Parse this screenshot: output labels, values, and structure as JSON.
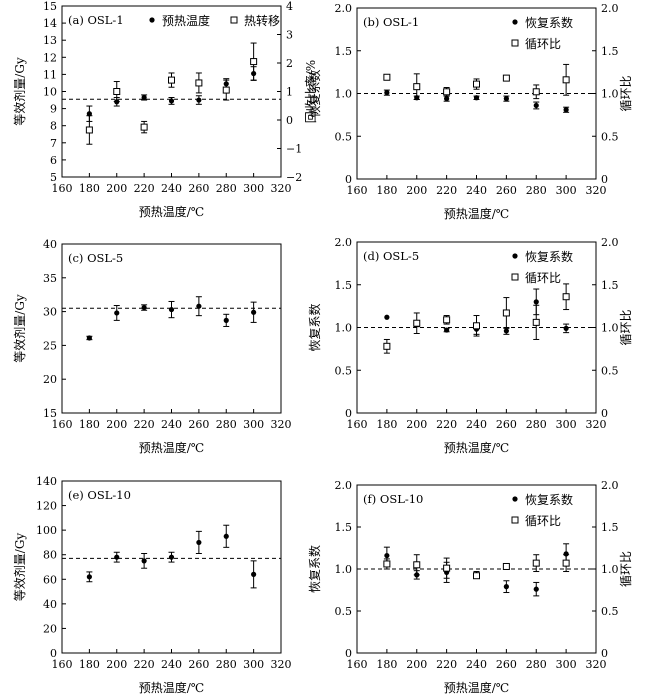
{
  "chart_data": [
    {
      "type": "scatter",
      "title": "(a) OSL-1",
      "xlabel": "预热温度/℃",
      "ylabel": "等效剂量/Gy",
      "y2label": "回收比率/%",
      "xlim": [
        160,
        320
      ],
      "ylim": [
        5,
        15
      ],
      "y2lim": [
        -2,
        4
      ],
      "xticks": [
        "160",
        "180",
        "200",
        "220",
        "240",
        "260",
        "280",
        "300",
        "320"
      ],
      "yticks": [
        "5",
        "6",
        "7",
        "8",
        "9",
        "10",
        "11",
        "12",
        "13",
        "14",
        "15"
      ],
      "y2ticks": [
        "−2",
        "−1",
        "0",
        "1",
        "2",
        "3",
        "4"
      ],
      "reference_line": {
        "axis": "y",
        "value": 9.55
      },
      "legend_position": "top",
      "series": [
        {
          "name": "预热温度",
          "marker": "filled-circle",
          "axis": "left",
          "x": [
            180,
            200,
            220,
            240,
            260,
            280,
            300
          ],
          "y": [
            8.7,
            9.4,
            9.65,
            9.45,
            9.5,
            10.45,
            11.05
          ],
          "err": [
            0.45,
            0.25,
            0.15,
            0.2,
            0.25,
            0.3,
            0.4
          ]
        },
        {
          "name": "热转移",
          "marker": "open-square",
          "axis": "right",
          "x": [
            180,
            200,
            220,
            240,
            260,
            280,
            300
          ],
          "y": [
            -0.35,
            1.0,
            -0.25,
            1.4,
            1.3,
            1.05,
            2.05
          ],
          "err": [
            0.5,
            0.35,
            0.2,
            0.25,
            0.35,
            0.35,
            0.65
          ]
        }
      ]
    },
    {
      "type": "scatter",
      "title": "(b) OSL-1",
      "xlabel": "预热温度/℃",
      "ylabel": "恢复系数",
      "y2label": "循环比",
      "xlim": [
        160,
        320
      ],
      "ylim": [
        0,
        2
      ],
      "y2lim": [
        0,
        2
      ],
      "xticks": [
        "160",
        "180",
        "200",
        "220",
        "240",
        "260",
        "280",
        "300",
        "320"
      ],
      "yticks": [
        "0",
        "0.5",
        "1.0",
        "1.5",
        "2.0"
      ],
      "y2ticks": [
        "0",
        "0.5",
        "1.0",
        "1.5",
        "2.0"
      ],
      "reference_line": {
        "axis": "y",
        "value": 1.0
      },
      "legend_position": "top-right",
      "series": [
        {
          "name": "恢复系数",
          "marker": "filled-circle",
          "axis": "left",
          "x": [
            180,
            200,
            220,
            240,
            260,
            280,
            300
          ],
          "y": [
            1.01,
            0.95,
            0.94,
            0.95,
            0.94,
            0.86,
            0.81
          ],
          "err": [
            0.03,
            0.02,
            0.03,
            0.02,
            0.03,
            0.04,
            0.03
          ]
        },
        {
          "name": "循环比",
          "marker": "open-square",
          "axis": "right",
          "x": [
            180,
            200,
            220,
            240,
            260,
            280,
            300
          ],
          "y": [
            1.19,
            1.08,
            1.02,
            1.11,
            1.18,
            1.02,
            1.16
          ],
          "err": [
            0.03,
            0.15,
            0.05,
            0.06,
            0.03,
            0.08,
            0.18
          ]
        }
      ]
    },
    {
      "type": "scatter",
      "title": "(c) OSL-5",
      "xlabel": "预热温度/℃",
      "ylabel": "等效剂量/Gy",
      "xlim": [
        160,
        320
      ],
      "ylim": [
        15,
        40
      ],
      "xticks": [
        "160",
        "180",
        "200",
        "220",
        "240",
        "260",
        "280",
        "300",
        "320"
      ],
      "yticks": [
        "15",
        "20",
        "25",
        "30",
        "35",
        "40"
      ],
      "reference_line": {
        "axis": "y",
        "value": 30.5
      },
      "series": [
        {
          "name": "",
          "marker": "filled-circle",
          "axis": "left",
          "x": [
            180,
            200,
            220,
            240,
            260,
            280,
            300
          ],
          "y": [
            26.1,
            29.8,
            30.6,
            30.3,
            30.8,
            28.7,
            29.9
          ],
          "err": [
            0.25,
            1.1,
            0.4,
            1.2,
            1.4,
            0.9,
            1.5
          ]
        }
      ]
    },
    {
      "type": "scatter",
      "title": "(d) OSL-5",
      "xlabel": "预热温度/℃",
      "ylabel": "恢复系数",
      "y2label": "循环比",
      "xlim": [
        160,
        320
      ],
      "ylim": [
        0,
        2
      ],
      "y2lim": [
        0,
        2
      ],
      "xticks": [
        "160",
        "180",
        "200",
        "220",
        "240",
        "260",
        "280",
        "300",
        "320"
      ],
      "yticks": [
        "0",
        "0.5",
        "1.0",
        "1.5",
        "2.0"
      ],
      "y2ticks": [
        "0",
        "0.5",
        "1.0",
        "1.5",
        "2.0"
      ],
      "reference_line": {
        "axis": "y",
        "value": 1.0
      },
      "legend_position": "top-right",
      "series": [
        {
          "name": "恢复系数",
          "marker": "filled-circle",
          "axis": "left",
          "x": [
            180,
            200,
            220,
            240,
            260,
            280,
            300
          ],
          "y": [
            1.12,
            1.04,
            0.97,
            0.98,
            0.96,
            1.3,
            0.99
          ],
          "err": [
            0.0,
            0.03,
            0.02,
            0.06,
            0.04,
            0.15,
            0.05
          ]
        },
        {
          "name": "循环比",
          "marker": "open-square",
          "axis": "right",
          "x": [
            180,
            200,
            220,
            240,
            260,
            280,
            300
          ],
          "y": [
            0.78,
            1.05,
            1.09,
            1.02,
            1.17,
            1.06,
            1.36
          ],
          "err": [
            0.08,
            0.12,
            0.05,
            0.12,
            0.18,
            0.2,
            0.15
          ]
        }
      ]
    },
    {
      "type": "scatter",
      "title": "(e) OSL-10",
      "xlabel": "预热温度/℃",
      "ylabel": "等效剂量/Gy",
      "xlim": [
        160,
        320
      ],
      "ylim": [
        0,
        140
      ],
      "xticks": [
        "160",
        "180",
        "200",
        "220",
        "240",
        "260",
        "280",
        "300",
        "320"
      ],
      "yticks": [
        "0",
        "20",
        "40",
        "60",
        "80",
        "100",
        "120",
        "140"
      ],
      "reference_line": {
        "axis": "y",
        "value": 77
      },
      "series": [
        {
          "name": "",
          "marker": "filled-circle",
          "axis": "left",
          "x": [
            180,
            200,
            220,
            240,
            260,
            280,
            300
          ],
          "y": [
            62,
            78,
            75,
            78,
            90,
            95,
            64
          ],
          "err": [
            4,
            4,
            6,
            4,
            9,
            9,
            11
          ]
        }
      ]
    },
    {
      "type": "scatter",
      "title": "(f) OSL-10",
      "xlabel": "预热温度/℃",
      "ylabel": "恢复系数",
      "y2label": "循环比",
      "xlim": [
        160,
        320
      ],
      "ylim": [
        0,
        2
      ],
      "y2lim": [
        0,
        2
      ],
      "xticks": [
        "160",
        "180",
        "200",
        "220",
        "240",
        "260",
        "280",
        "300",
        "320"
      ],
      "yticks": [
        "0",
        "0.5",
        "1.0",
        "1.5",
        "2.0"
      ],
      "y2ticks": [
        "0",
        "0.5",
        "1.0",
        "1.5",
        "2.0"
      ],
      "reference_line": {
        "axis": "y",
        "value": 1.0
      },
      "legend_position": "top-right",
      "series": [
        {
          "name": "恢复系数",
          "marker": "filled-circle",
          "axis": "left",
          "x": [
            180,
            200,
            220,
            240,
            260,
            280,
            300
          ],
          "y": [
            1.16,
            0.93,
            0.96,
            0.93,
            0.79,
            0.76,
            1.18
          ],
          "err": [
            0.1,
            0.05,
            0.12,
            0.04,
            0.07,
            0.08,
            0.12
          ]
        },
        {
          "name": "循环比",
          "marker": "open-square",
          "axis": "right",
          "x": [
            180,
            200,
            220,
            240,
            260,
            280,
            300
          ],
          "y": [
            1.06,
            1.05,
            1.01,
            0.92,
            1.03,
            1.07,
            1.07
          ],
          "err": [
            0.06,
            0.12,
            0.12,
            0.03,
            0.03,
            0.1,
            0.1
          ]
        }
      ]
    }
  ]
}
